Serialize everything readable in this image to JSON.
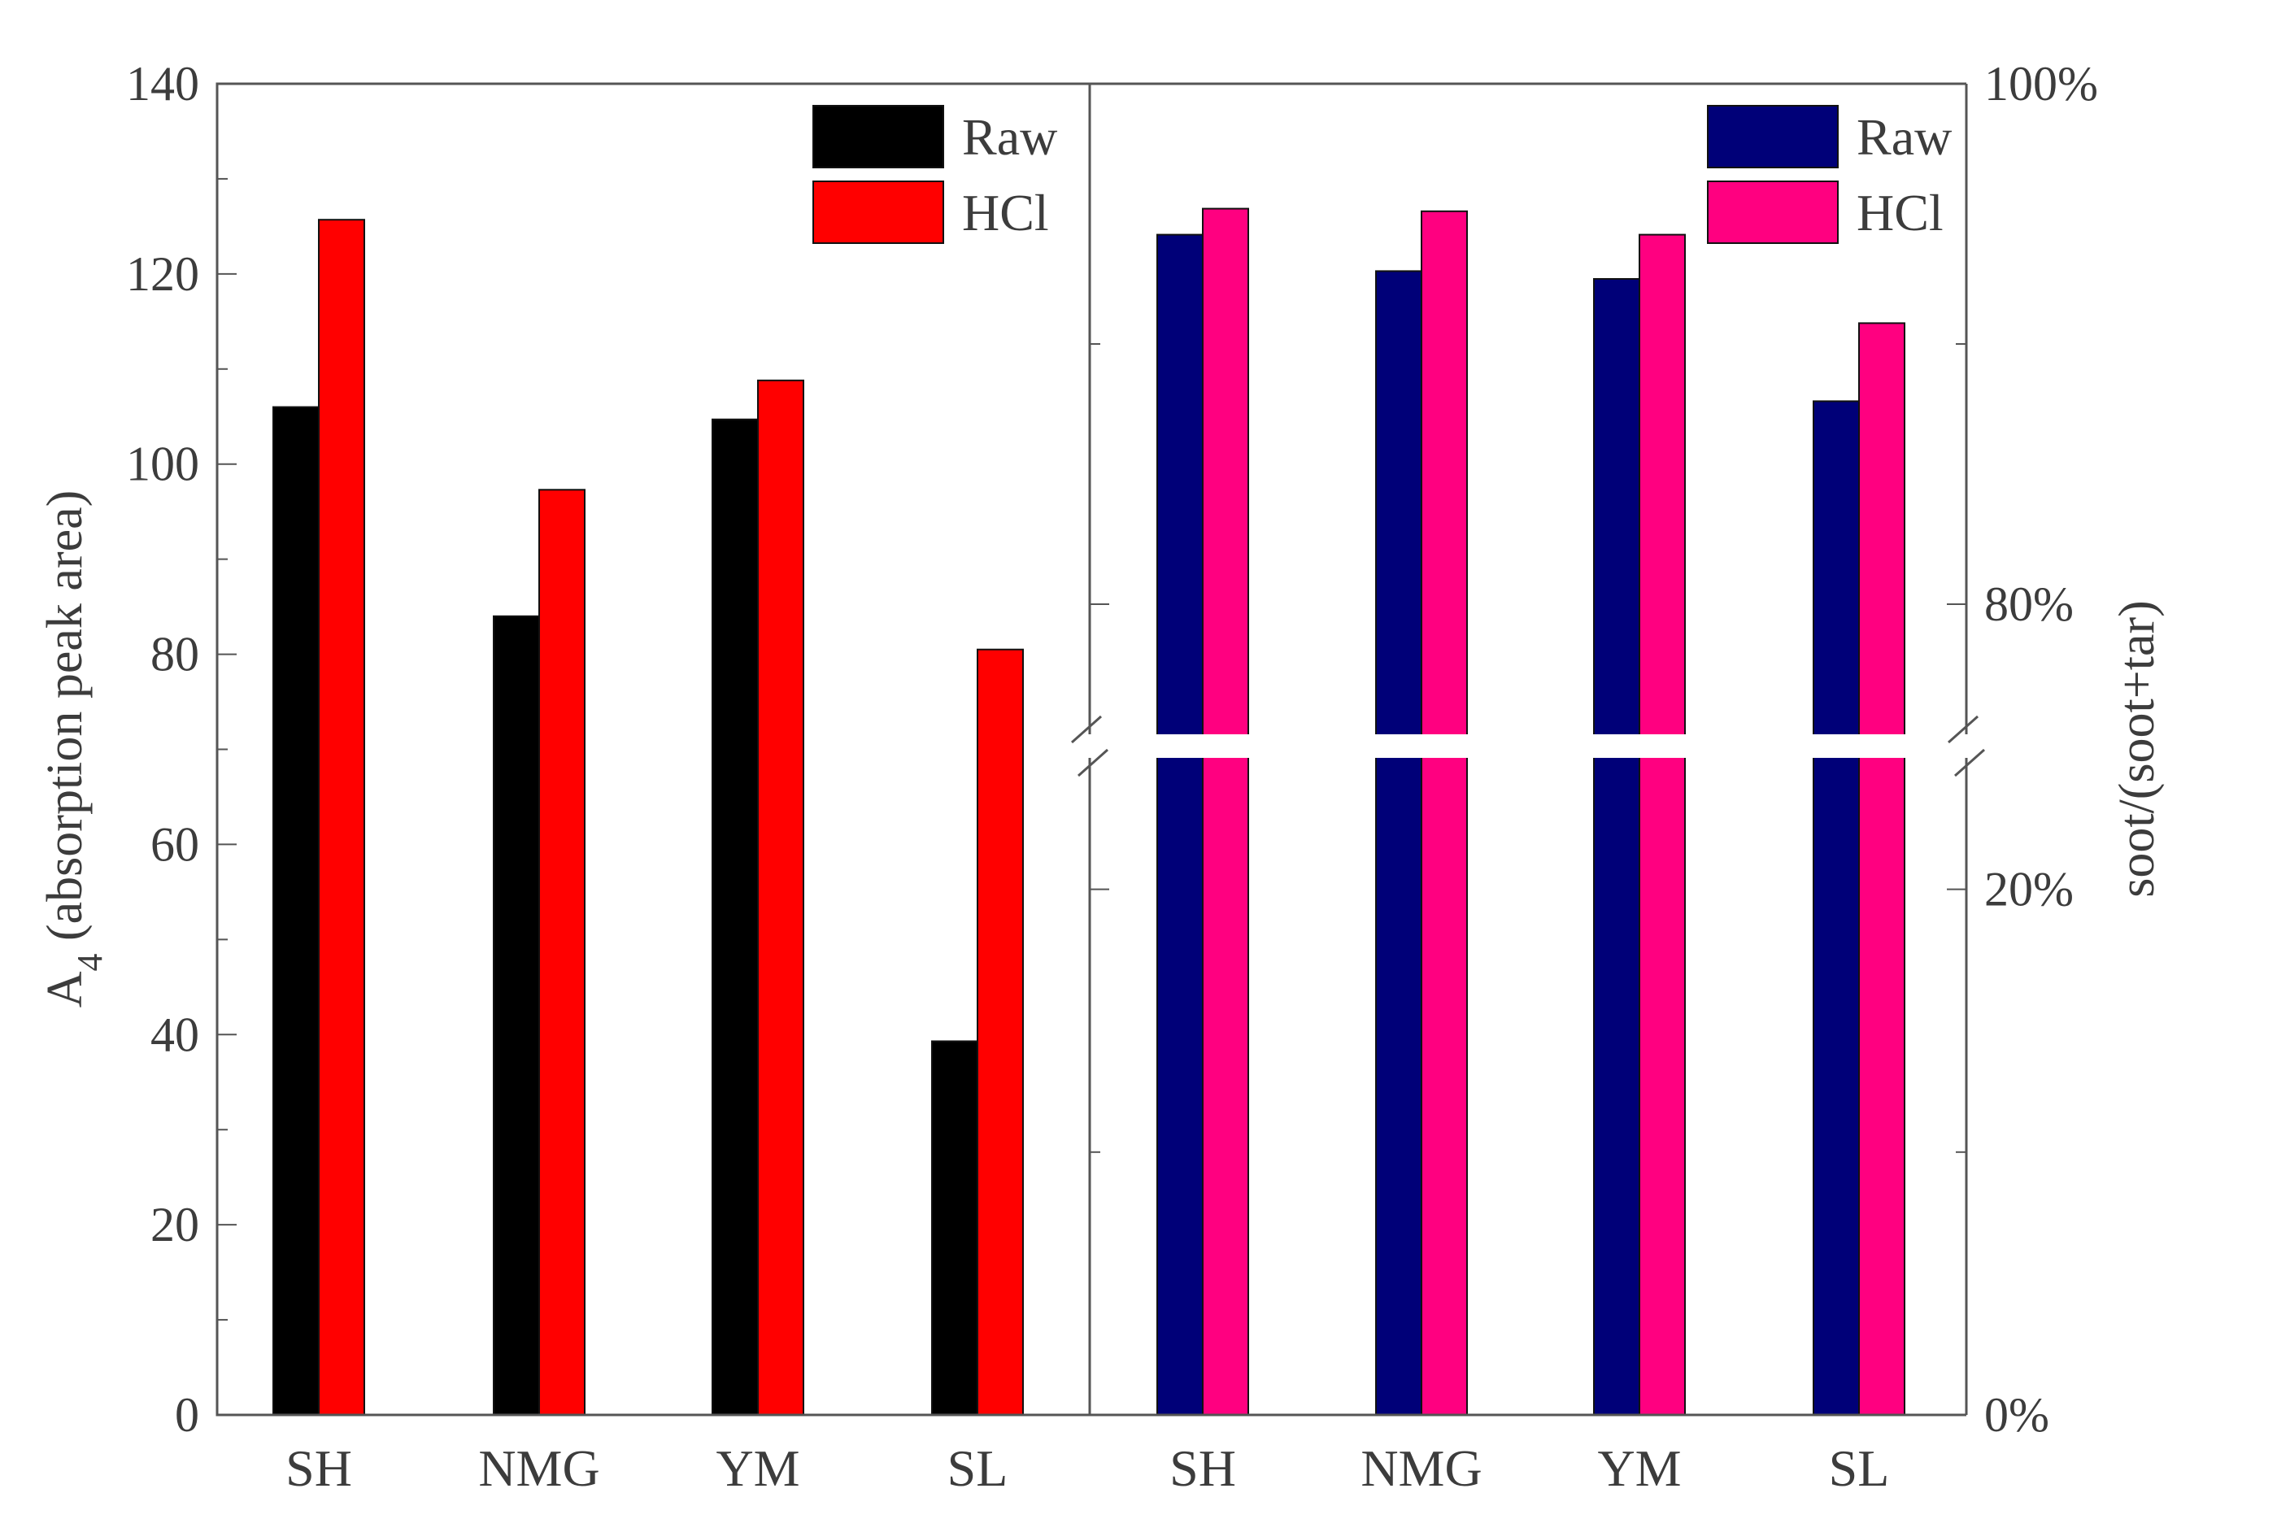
{
  "chart_data": [
    {
      "type": "bar",
      "categories": [
        "SH",
        "NMG",
        "YM",
        "SL"
      ],
      "series": [
        {
          "name": "Raw",
          "color": "#000000",
          "values": [
            106,
            84,
            104.7,
            39.3
          ]
        },
        {
          "name": "HCl",
          "color": "#ff0000",
          "values": [
            125.7,
            97.3,
            108.8,
            80.5
          ]
        }
      ],
      "ylabel_main": "A",
      "ylabel_sub": "4",
      "ylabel_rest": " (absorption peak area)",
      "ylim": [
        0,
        140
      ],
      "yticks": [
        "0",
        "20",
        "40",
        "60",
        "80",
        "100",
        "120",
        "140"
      ],
      "legend_position": "top-right",
      "grid": false
    },
    {
      "type": "bar",
      "categories": [
        "SH",
        "NMG",
        "YM",
        "SL"
      ],
      "series": [
        {
          "name": "Raw",
          "color": "#000078",
          "values": [
            0.942,
            0.928,
            0.925,
            0.878
          ]
        },
        {
          "name": "HCl",
          "color": "#ff0080",
          "values": [
            0.952,
            0.951,
            0.942,
            0.908
          ]
        }
      ],
      "ylabel": "soot/(soot+tar)",
      "y_axis_side": "right",
      "axis_break": [
        0.25,
        0.75
      ],
      "ylim": [
        0,
        1
      ],
      "yticks": [
        "0%",
        "20%",
        "80%",
        "100%"
      ],
      "legend_position": "top-right",
      "grid": false
    }
  ]
}
